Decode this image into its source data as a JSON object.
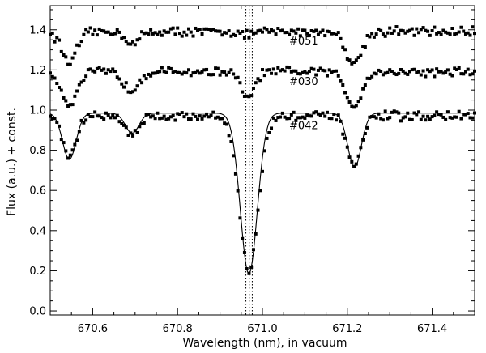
{
  "chart_data": {
    "type": "scatter",
    "xlabel": "Wavelength (nm), in vacuum",
    "ylabel": "Flux (a.u.) + const.",
    "xlim": [
      670.5,
      671.5
    ],
    "ylim": [
      -0.02,
      1.52
    ],
    "x_ticks": [
      "670.6",
      "670.8",
      "671.0",
      "671.2",
      "671.4"
    ],
    "y_ticks": [
      "0.0",
      "0.2",
      "0.4",
      "0.6",
      "0.8",
      "1.0",
      "1.2",
      "1.4"
    ],
    "vertical_reference_lines": [
      670.961,
      670.969,
      670.976
    ],
    "spectra": [
      {
        "label": "#051",
        "continuum": 1.39,
        "lines": [
          {
            "center": 670.545,
            "depth": 0.15,
            "width": 0.018
          },
          {
            "center": 670.695,
            "depth": 0.06,
            "width": 0.015
          },
          {
            "center": 670.965,
            "depth": 0.02,
            "width": 0.01
          },
          {
            "center": 671.215,
            "depth": 0.16,
            "width": 0.018
          }
        ]
      },
      {
        "label": "#030",
        "continuum": 1.19,
        "lines": [
          {
            "center": 670.545,
            "depth": 0.16,
            "width": 0.018
          },
          {
            "center": 670.69,
            "depth": 0.09,
            "width": 0.017
          },
          {
            "center": 670.965,
            "depth": 0.13,
            "width": 0.016
          },
          {
            "center": 671.215,
            "depth": 0.17,
            "width": 0.018
          }
        ]
      },
      {
        "label": "#042",
        "continuum": 0.97,
        "lines": [
          {
            "center": 670.545,
            "depth": 0.2,
            "width": 0.016
          },
          {
            "center": 670.693,
            "depth": 0.09,
            "width": 0.016
          },
          {
            "center": 670.968,
            "depth": 0.77,
            "width": 0.022
          },
          {
            "center": 671.217,
            "depth": 0.25,
            "width": 0.017
          }
        ]
      }
    ],
    "model_fit": {
      "continuum": 0.985,
      "lines": [
        {
          "center": 670.545,
          "depth": 0.23,
          "width": 0.016
        },
        {
          "center": 670.693,
          "depth": 0.1,
          "width": 0.016
        },
        {
          "center": 670.968,
          "depth": 0.8,
          "width": 0.02
        },
        {
          "center": 671.217,
          "depth": 0.27,
          "width": 0.016
        }
      ]
    }
  }
}
